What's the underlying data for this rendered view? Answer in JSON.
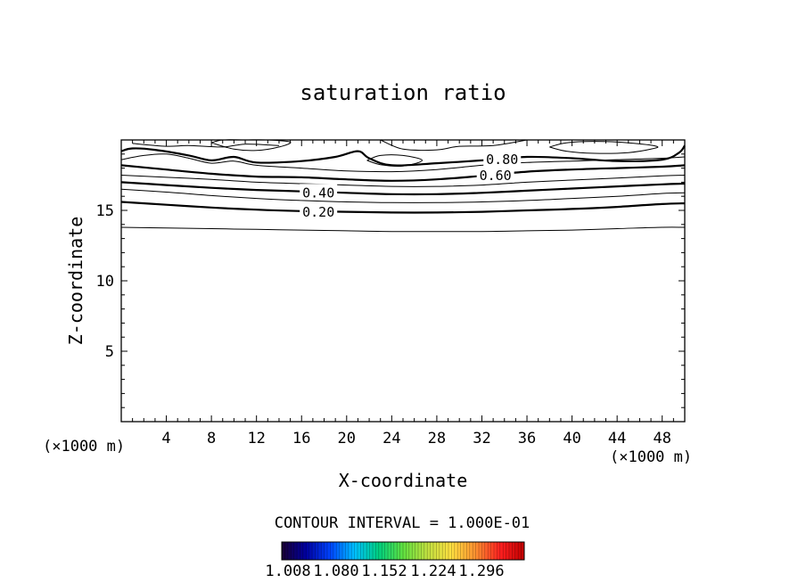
{
  "chart_data": {
    "type": "contour",
    "title": "saturation ratio",
    "xlabel": "X-coordinate",
    "ylabel": "Z-coordinate",
    "x_unit_left": "(×1000 m)",
    "x_unit_right": "(×1000 m)",
    "xlim": [
      0,
      50
    ],
    "ylim": [
      0,
      20
    ],
    "x_ticks": [
      4,
      8,
      12,
      16,
      20,
      24,
      28,
      32,
      36,
      40,
      44,
      48
    ],
    "y_ticks": [
      5,
      10,
      15
    ],
    "contour_interval_text": "CONTOUR INTERVAL = 1.000E-01",
    "contours": [
      {
        "level": 0.1,
        "label": "",
        "bold": false,
        "x": [
          0,
          4,
          8,
          12,
          16,
          20,
          24,
          28,
          32,
          36,
          40,
          44,
          48,
          50
        ],
        "z": [
          13.8,
          13.75,
          13.7,
          13.65,
          13.6,
          13.55,
          13.5,
          13.5,
          13.5,
          13.55,
          13.6,
          13.7,
          13.8,
          13.8
        ]
      },
      {
        "level": 0.2,
        "label": "0.20",
        "label_x": 17.5,
        "bold": true,
        "x": [
          0,
          4,
          8,
          12,
          16,
          20,
          24,
          28,
          32,
          36,
          40,
          44,
          48,
          50
        ],
        "z": [
          15.6,
          15.4,
          15.2,
          15.05,
          14.95,
          14.9,
          14.85,
          14.85,
          14.9,
          15.0,
          15.1,
          15.25,
          15.45,
          15.5
        ]
      },
      {
        "level": 0.3,
        "label": "",
        "bold": false,
        "x": [
          0,
          4,
          8,
          12,
          16,
          20,
          24,
          28,
          32,
          36,
          40,
          44,
          48,
          50
        ],
        "z": [
          16.5,
          16.3,
          16.05,
          15.85,
          15.7,
          15.6,
          15.55,
          15.55,
          15.6,
          15.7,
          15.85,
          16.0,
          16.2,
          16.25
        ]
      },
      {
        "level": 0.4,
        "label": "0.40",
        "label_x": 17.5,
        "bold": true,
        "x": [
          0,
          4,
          8,
          12,
          16,
          20,
          24,
          28,
          32,
          36,
          40,
          44,
          48,
          50
        ],
        "z": [
          17.0,
          16.8,
          16.6,
          16.45,
          16.35,
          16.25,
          16.15,
          16.15,
          16.25,
          16.4,
          16.55,
          16.7,
          16.85,
          16.9
        ]
      },
      {
        "level": 0.5,
        "label": "",
        "bold": false,
        "x": [
          0,
          4,
          8,
          12,
          16,
          20,
          24,
          28,
          32,
          36,
          40,
          44,
          48,
          50
        ],
        "z": [
          17.5,
          17.35,
          17.2,
          17.0,
          16.9,
          16.8,
          16.7,
          16.7,
          16.8,
          17.0,
          17.15,
          17.3,
          17.45,
          17.5
        ]
      },
      {
        "level": 0.6,
        "label": "0.60",
        "label_x": 33.2,
        "bold": true,
        "x": [
          0,
          4,
          8,
          12,
          16,
          20,
          24,
          28,
          32,
          36,
          40,
          44,
          48,
          50
        ],
        "z": [
          18.2,
          17.9,
          17.6,
          17.4,
          17.35,
          17.2,
          17.1,
          17.2,
          17.45,
          17.75,
          17.9,
          18.0,
          18.1,
          18.2
        ]
      },
      {
        "level": 0.7,
        "label": "",
        "bold": false,
        "x": [
          0,
          2,
          4,
          6,
          8,
          10,
          12,
          16,
          20,
          24,
          28,
          32,
          36,
          40,
          44,
          48,
          50
        ],
        "z": [
          18.6,
          18.9,
          19.0,
          18.7,
          18.35,
          18.5,
          18.2,
          18.0,
          17.8,
          17.75,
          17.9,
          18.2,
          18.4,
          18.5,
          18.6,
          18.7,
          18.8
        ]
      },
      {
        "level": 0.8,
        "label": "0.80",
        "label_x": 33.8,
        "bold": true,
        "x": [
          0,
          1,
          3,
          6,
          8,
          10,
          12,
          16,
          19,
          21,
          22,
          24,
          28,
          32,
          36,
          40,
          44,
          48,
          49.5,
          50
        ],
        "z": [
          19.2,
          19.4,
          19.3,
          18.9,
          18.55,
          18.8,
          18.4,
          18.5,
          18.8,
          19.2,
          18.7,
          18.2,
          18.35,
          18.55,
          18.8,
          18.7,
          18.5,
          18.6,
          19.1,
          19.6
        ]
      },
      {
        "level": 0.9,
        "label": "",
        "bold": false,
        "x": [
          8,
          10,
          12,
          14,
          15,
          13,
          11,
          9,
          8
        ],
        "z": [
          19.8,
          19.35,
          19.25,
          19.5,
          19.85,
          20.0,
          20.0,
          20.0,
          19.8
        ]
      },
      {
        "level": 0.85,
        "label": "",
        "bold": false,
        "x": [
          1,
          4,
          6,
          9,
          11,
          14
        ],
        "z": [
          19.75,
          19.55,
          19.6,
          19.5,
          19.7,
          19.6
        ]
      },
      {
        "level": 0.9,
        "label": "",
        "bold": false,
        "x": [
          21.8,
          23,
          25,
          26.7,
          25,
          23,
          21.8
        ],
        "z": [
          18.55,
          18.25,
          18.15,
          18.55,
          18.9,
          18.9,
          18.55
        ]
      },
      {
        "level": 0.9,
        "label": "",
        "bold": false,
        "x": [
          23,
          25,
          28,
          30,
          33,
          36
        ],
        "z": [
          20.0,
          19.35,
          19.3,
          19.55,
          19.6,
          20.0
        ]
      },
      {
        "level": 0.9,
        "label": "",
        "bold": false,
        "x": [
          38,
          39.5,
          42,
          45,
          47,
          47.5,
          45,
          42,
          39.5,
          38
        ],
        "z": [
          19.5,
          19.2,
          19.05,
          19.1,
          19.35,
          19.55,
          19.8,
          19.9,
          19.8,
          19.5
        ]
      }
    ],
    "colorbar": {
      "ticks": [
        "1.008",
        "1.080",
        "1.152",
        "1.224",
        "1.296"
      ],
      "colors": [
        "#1a0033",
        "#0000a0",
        "#0044ff",
        "#00c0ff",
        "#00d080",
        "#60e040",
        "#c0e040",
        "#ffe040",
        "#ff9030",
        "#ff2020",
        "#c00000"
      ]
    }
  }
}
